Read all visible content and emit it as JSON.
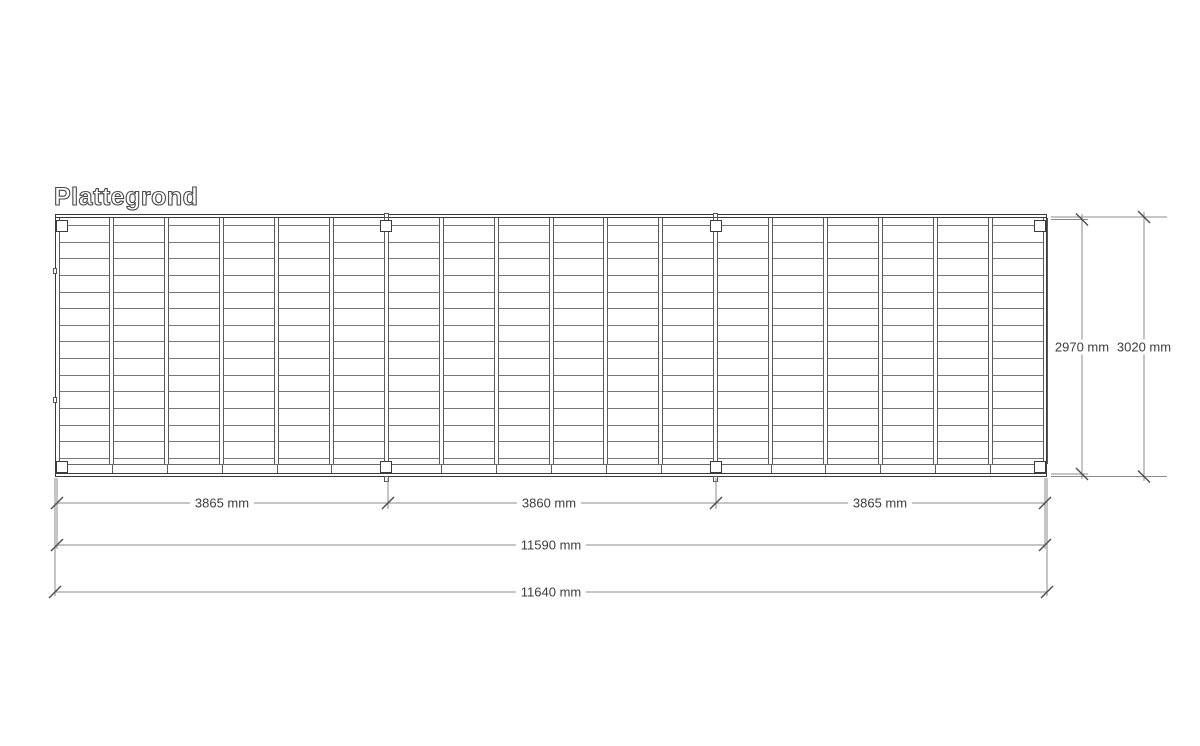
{
  "title": "Plattegrond",
  "plan": {
    "view": "top view floor plan of rectangular deck frame",
    "joist_count": 19,
    "plank_row_lines": 15,
    "bay_count": 3,
    "post_joist_indexes": [
      0,
      6,
      12,
      18
    ],
    "post_count": 8
  },
  "dimensions": {
    "unit": "mm",
    "bottom_segments": [
      {
        "label": "3865 mm",
        "value": 3865
      },
      {
        "label": "3860 mm",
        "value": 3860
      },
      {
        "label": "3865 mm",
        "value": 3865
      }
    ],
    "bottom_inner_total": {
      "label": "11590 mm",
      "value": 11590
    },
    "bottom_outer_total": {
      "label": "11640 mm",
      "value": 11640
    },
    "right_inner_depth": {
      "label": "2970 mm",
      "value": 2970
    },
    "right_outer_depth": {
      "label": "3020 mm",
      "value": 3020
    }
  },
  "colors": {
    "background": "#ffffff",
    "outline": "#3b3b3b",
    "joist_line": "#5a5a5a",
    "plank_line": "#787878",
    "dim_line": "#8b8b8b",
    "tick": "#4d4d4d",
    "text": "#3d3d3d"
  }
}
